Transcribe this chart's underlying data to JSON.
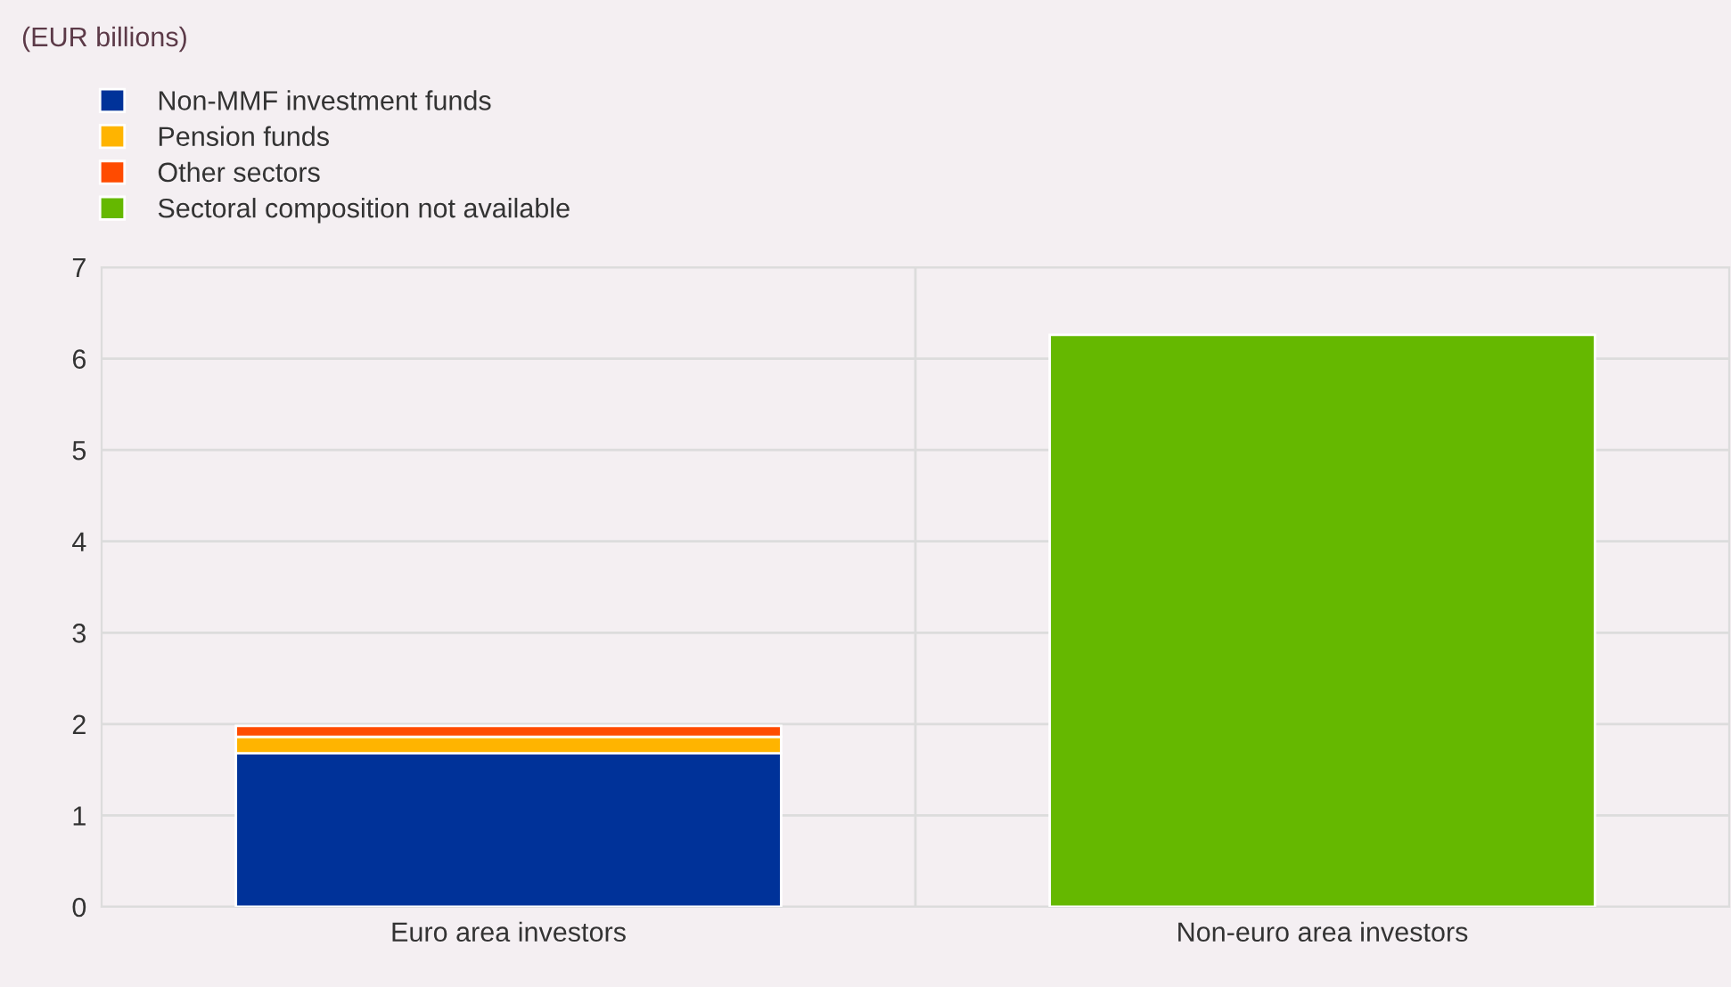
{
  "chart_data": {
    "type": "bar",
    "stacked": true,
    "annotations": [
      "(EUR billions)"
    ],
    "categories": [
      "Euro area investors",
      "Non-euro area investors"
    ],
    "series": [
      {
        "name": "Non-MMF investment funds",
        "color": "#003299",
        "values": [
          1.68,
          null
        ]
      },
      {
        "name": "Pension funds",
        "color": "#ffb400",
        "values": [
          0.18,
          null
        ]
      },
      {
        "name": "Other sectors",
        "color": "#ff4b00",
        "values": [
          0.12,
          null
        ]
      },
      {
        "name": "Sectoral composition not available",
        "color": "#65b800",
        "values": [
          null,
          6.26
        ]
      }
    ],
    "ylim": [
      0,
      7
    ],
    "yticks": [
      0,
      1,
      2,
      3,
      4,
      5,
      6,
      7
    ],
    "grid": true,
    "legend": "top left"
  }
}
